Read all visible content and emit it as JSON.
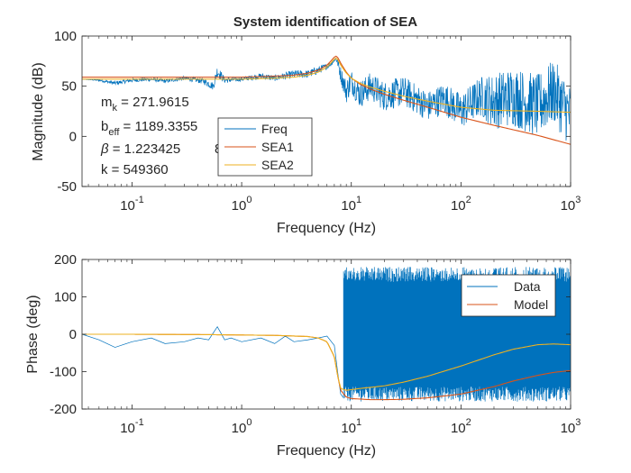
{
  "chart_data": [
    {
      "type": "line",
      "title": "System identification of SEA",
      "xlabel": "Frequency (Hz)",
      "ylabel": "Magnitude (dB)",
      "xscale": "log",
      "xlim": [
        0.035,
        1000
      ],
      "ylim": [
        -50,
        100
      ],
      "yticks": [
        -50,
        0,
        50,
        100
      ],
      "xticks": [
        0.1,
        1,
        10,
        100,
        1000
      ],
      "xtick_labels": [
        {
          "base": "10",
          "exp": "-1"
        },
        {
          "base": "10",
          "exp": "0"
        },
        {
          "base": "10",
          "exp": "1"
        },
        {
          "base": "10",
          "exp": "2"
        },
        {
          "base": "10",
          "exp": "3"
        }
      ],
      "grid": false,
      "legend": {
        "placement": "center",
        "entries": [
          "Freq",
          "SEA1",
          "SEA2"
        ]
      },
      "series": [
        {
          "name": "Freq",
          "color": "#0072BD",
          "x": [
            0.035,
            0.05,
            0.07,
            0.1,
            0.15,
            0.2,
            0.3,
            0.45,
            0.55,
            0.6,
            0.7,
            1,
            1.5,
            2,
            3,
            4,
            5,
            6,
            6.5,
            7,
            7.2,
            7.5,
            8,
            9,
            10,
            12,
            15,
            20,
            30,
            50,
            70,
            100,
            150,
            200,
            300,
            500,
            700,
            1000
          ],
          "values": [
            57,
            56,
            53,
            56,
            57,
            55,
            58,
            55,
            50,
            65,
            56,
            57,
            60,
            58,
            62,
            62,
            66,
            70,
            72,
            76,
            78,
            74,
            62,
            45,
            55,
            42,
            50,
            40,
            45,
            30,
            38,
            25,
            40,
            35,
            40,
            30,
            45,
            20
          ],
          "spread": [
            0,
            1,
            2,
            2,
            2,
            2,
            2,
            3,
            4,
            6,
            3,
            2,
            3,
            3,
            4,
            4,
            4,
            3,
            2,
            2,
            2,
            4,
            8,
            12,
            12,
            14,
            14,
            15,
            15,
            15,
            16,
            18,
            20,
            28,
            30,
            32,
            32,
            32
          ]
        },
        {
          "name": "SEA1",
          "color": "#D95319",
          "x": [
            0.035,
            0.1,
            0.5,
            1,
            2,
            3,
            4,
            5,
            6,
            6.5,
            7,
            7.3,
            7.6,
            8,
            9,
            10,
            12,
            15,
            20,
            30,
            50,
            100,
            200,
            500,
            1000
          ],
          "values": [
            59,
            59,
            59,
            59,
            60,
            61,
            63,
            66,
            71,
            75,
            79,
            80,
            78,
            73,
            64,
            58,
            52,
            47,
            42,
            36,
            29,
            19,
            11,
            1,
            -8
          ]
        },
        {
          "name": "SEA2",
          "color": "#EDB120",
          "x": [
            0.035,
            0.1,
            0.5,
            1,
            2,
            3,
            4,
            5,
            6,
            6.5,
            7,
            7.3,
            7.6,
            8,
            9,
            10,
            12,
            15,
            20,
            30,
            50,
            100,
            200,
            500,
            1000
          ],
          "values": [
            57,
            57,
            57,
            57,
            58,
            59,
            61,
            64,
            69,
            73,
            77,
            78,
            76,
            71,
            63,
            58,
            53,
            49,
            45,
            40,
            35,
            29,
            26,
            25,
            24
          ]
        }
      ],
      "annotations": [
        {
          "base": "m",
          "sub": "k",
          "text": " = 271.9615"
        },
        {
          "base": "b",
          "sub": "eff",
          "text": " = 1189.3355"
        },
        {
          "base": "β",
          "sub": "",
          "text": " = 1.223425"
        },
        {
          "base": "k = 549360",
          "sub": "",
          "text": ""
        }
      ],
      "annotation_fragment": "8"
    },
    {
      "type": "line",
      "title": "",
      "xlabel": "Frequency (Hz)",
      "ylabel": "Phase (deg)",
      "xscale": "log",
      "xlim": [
        0.035,
        1000
      ],
      "ylim": [
        -200,
        200
      ],
      "yticks": [
        -200,
        -100,
        0,
        100,
        200
      ],
      "xticks": [
        0.1,
        1,
        10,
        100,
        1000
      ],
      "xtick_labels": [
        {
          "base": "10",
          "exp": "-1"
        },
        {
          "base": "10",
          "exp": "0"
        },
        {
          "base": "10",
          "exp": "1"
        },
        {
          "base": "10",
          "exp": "2"
        },
        {
          "base": "10",
          "exp": "3"
        }
      ],
      "grid": false,
      "legend": {
        "placement": "top-right",
        "entries": [
          "Data",
          "Model"
        ]
      },
      "series": [
        {
          "name": "Data",
          "color": "#0072BD",
          "x": [
            0.035,
            0.05,
            0.07,
            0.1,
            0.15,
            0.2,
            0.3,
            0.4,
            0.5,
            0.6,
            0.7,
            0.8,
            1,
            1.5,
            2,
            2.5,
            3,
            4,
            5,
            6,
            7,
            7.5,
            8,
            8.5
          ],
          "values": [
            0,
            -15,
            -35,
            -20,
            -10,
            -25,
            -20,
            -10,
            -15,
            20,
            -15,
            -10,
            -20,
            -10,
            -25,
            -5,
            -20,
            -15,
            -10,
            -5,
            -30,
            -100,
            -160,
            -170
          ],
          "noise_band": {
            "from_x": 8.5,
            "to_x": 1000,
            "ymin": -180,
            "ymax": 180
          }
        },
        {
          "name": "Model",
          "color": "#D95319",
          "x": [
            0.035,
            0.1,
            0.5,
            1,
            2,
            4,
            5,
            6,
            7,
            7.5,
            8,
            9,
            10,
            15,
            20,
            30,
            50,
            100,
            200,
            300,
            500,
            700,
            1000
          ],
          "values": [
            0,
            0,
            -1,
            -2,
            -3,
            -6,
            -10,
            -20,
            -60,
            -110,
            -150,
            -168,
            -172,
            -175,
            -175,
            -174,
            -170,
            -160,
            -140,
            -125,
            -110,
            -102,
            -97
          ]
        },
        {
          "name": "",
          "color": "#EDB120",
          "x": [
            0.035,
            0.1,
            0.5,
            1,
            2,
            4,
            5,
            6,
            7,
            7.5,
            8,
            9,
            10,
            12,
            15,
            20,
            30,
            50,
            100,
            200,
            300,
            500,
            700,
            1000
          ],
          "values": [
            0,
            0,
            -1,
            -2,
            -3,
            -6,
            -10,
            -20,
            -60,
            -110,
            -145,
            -150,
            -148,
            -145,
            -142,
            -138,
            -128,
            -112,
            -85,
            -55,
            -40,
            -28,
            -26,
            -28
          ]
        }
      ]
    }
  ]
}
